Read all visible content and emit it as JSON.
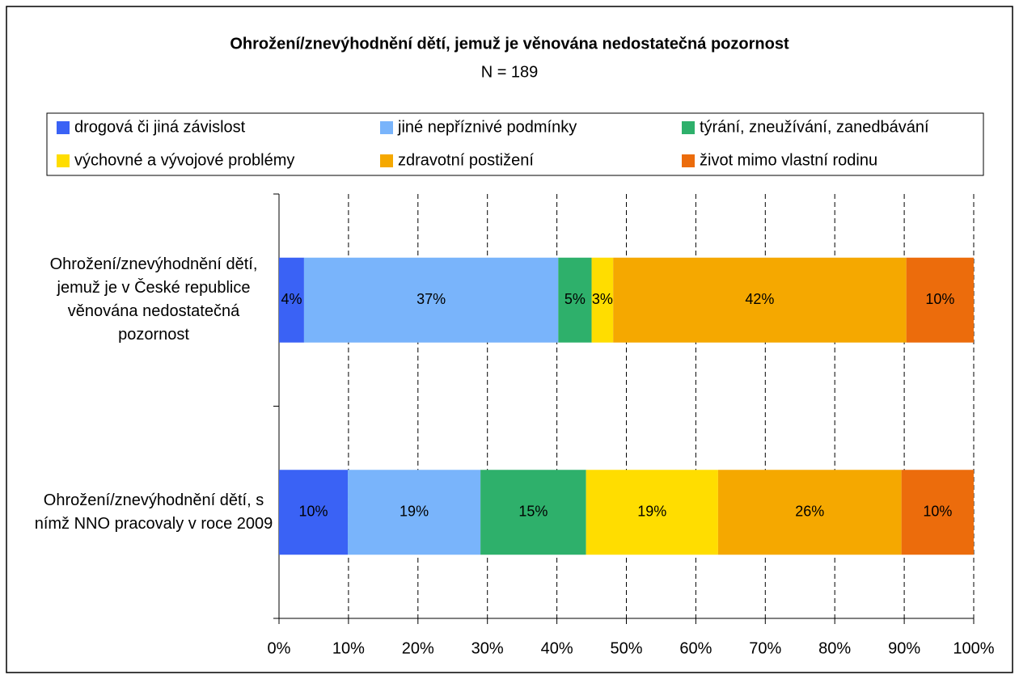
{
  "chart_data": {
    "type": "stacked-bar-horizontal",
    "title": "Ohrožení/znevýhodnění dětí, jemuž je věnována nedostatečná pozornost",
    "subtitle": "N = 189",
    "categories": [
      "Ohrožení/znevýhodnění dětí, jemuž je v České republice věnována nedostatečná pozornost",
      "Ohrožení/znevýhodnění dětí, s nímž NNO pracovaly v roce 2009"
    ],
    "series": [
      {
        "name": "drogová či jiná závislost",
        "color": "#3a62f5",
        "values": [
          3.6,
          9.9
        ],
        "value_labels": [
          "4%",
          "10%"
        ]
      },
      {
        "name": "jiné nepříznivé podmínky",
        "color": "#79b4fb",
        "values": [
          36.6,
          19.1
        ],
        "value_labels": [
          "37%",
          "19%"
        ]
      },
      {
        "name": "týrání, zneužívání, zanedbávání",
        "color": "#2eb06b",
        "values": [
          4.8,
          15.2
        ],
        "value_labels": [
          "5%",
          "15%"
        ]
      },
      {
        "name": "výchovné a vývojové problémy",
        "color": "#ffdd00",
        "values": [
          3.1,
          19.0
        ],
        "value_labels": [
          "3%",
          "19%"
        ]
      },
      {
        "name": "zdravotní postižení",
        "color": "#f5a800",
        "values": [
          42.2,
          26.4
        ],
        "value_labels": [
          "42%",
          "26%"
        ]
      },
      {
        "name": "život mimo vlastní rodinu",
        "color": "#ec6c0c",
        "values": [
          9.7,
          10.4
        ],
        "value_labels": [
          "10%",
          "10%"
        ]
      }
    ],
    "xlim": [
      0,
      100
    ],
    "xticks": [
      {
        "value": 0,
        "label": "0%"
      },
      {
        "value": 10,
        "label": "10%"
      },
      {
        "value": 20,
        "label": "20%"
      },
      {
        "value": 30,
        "label": "30%"
      },
      {
        "value": 40,
        "label": "40%"
      },
      {
        "value": 50,
        "label": "50%"
      },
      {
        "value": 60,
        "label": "60%"
      },
      {
        "value": 70,
        "label": "70%"
      },
      {
        "value": 80,
        "label": "80%"
      },
      {
        "value": 90,
        "label": "90%"
      },
      {
        "value": 100,
        "label": "100%"
      }
    ],
    "grid": true
  }
}
